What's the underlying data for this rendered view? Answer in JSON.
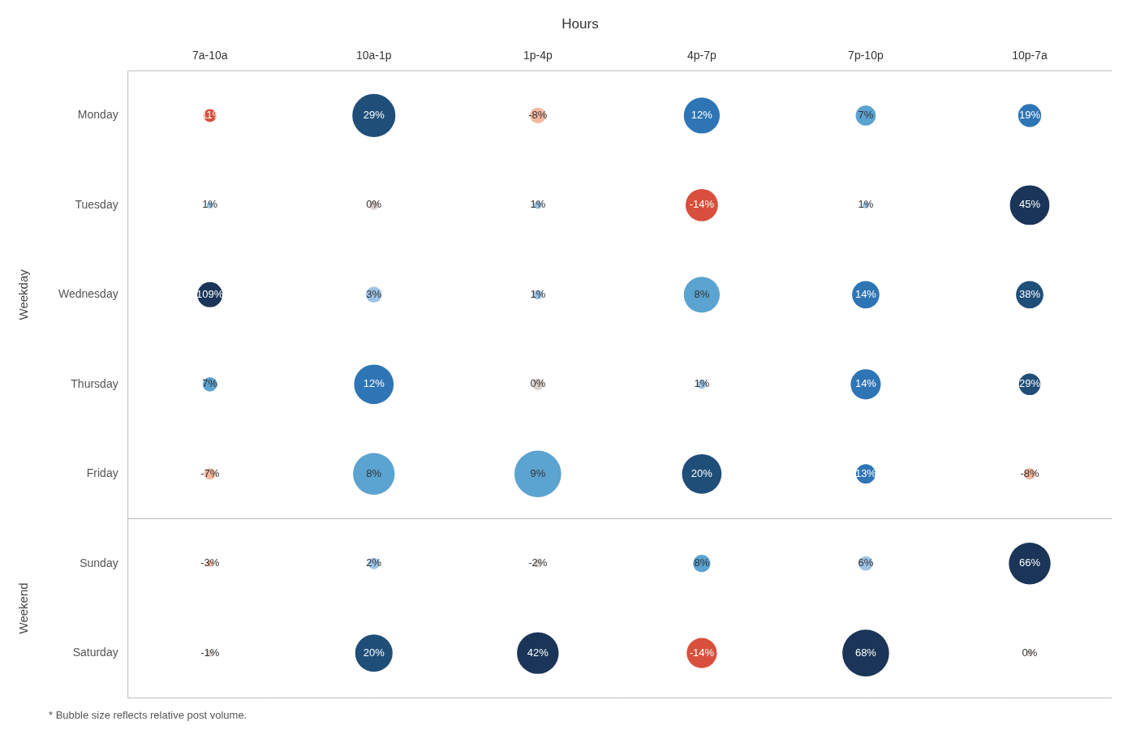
{
  "chart_data": {
    "type": "bubble",
    "title": "Hours",
    "footnote": "* Bubble size reflects relative post volume.",
    "categories": [
      "7a-10a",
      "10a-1p",
      "1p-4p",
      "4p-7p",
      "7p-10p",
      "10p-7a"
    ],
    "rows": [
      "Monday",
      "Tuesday",
      "Wednesday",
      "Thursday",
      "Friday",
      "Sunday",
      "Saturday"
    ],
    "row_groups": [
      {
        "label": "Weekday",
        "rows": [
          "Monday",
          "Tuesday",
          "Wednesday",
          "Thursday",
          "Friday"
        ]
      },
      {
        "label": "Weekend",
        "rows": [
          "Sunday",
          "Saturday"
        ]
      }
    ],
    "values": [
      [
        -11,
        29,
        -8,
        12,
        7,
        19
      ],
      [
        1,
        0,
        1,
        -14,
        1,
        45
      ],
      [
        109,
        3,
        1,
        8,
        14,
        38
      ],
      [
        7,
        12,
        0,
        1,
        14,
        29
      ],
      [
        -7,
        8,
        9,
        20,
        13,
        -8
      ],
      [
        -3,
        2,
        -2,
        8,
        6,
        66
      ],
      [
        -1,
        20,
        42,
        -14,
        68,
        0
      ]
    ],
    "value_labels": [
      [
        "-11%",
        "29%",
        "-8%",
        "12%",
        "7%",
        "19%"
      ],
      [
        "1%",
        "0%",
        "1%",
        "-14%",
        "1%",
        "45%"
      ],
      [
        "109%",
        "3%",
        "1%",
        "8%",
        "14%",
        "38%"
      ],
      [
        "7%",
        "12%",
        "0%",
        "1%",
        "14%",
        "29%"
      ],
      [
        "-7%",
        "8%",
        "9%",
        "20%",
        "13%",
        "-8%"
      ],
      [
        "-3%",
        "2%",
        "-2%",
        "8%",
        "6%",
        "66%"
      ],
      [
        "-1%",
        "20%",
        "42%",
        "-14%",
        "68%",
        "0%"
      ]
    ],
    "bubble_sizes": [
      [
        18,
        60,
        22,
        50,
        28,
        32
      ],
      [
        9,
        13,
        11,
        45,
        9,
        55
      ],
      [
        35,
        22,
        13,
        50,
        38,
        38
      ],
      [
        20,
        55,
        16,
        13,
        42,
        30
      ],
      [
        16,
        58,
        65,
        55,
        27,
        16
      ],
      [
        9,
        16,
        11,
        24,
        20,
        58
      ],
      [
        9,
        52,
        58,
        42,
        65,
        9
      ]
    ],
    "colors": [
      [
        "#d94f3d",
        "#1f4e79",
        "#f4b8a0",
        "#2e75b6",
        "#5ba3d0",
        "#2e75b6"
      ],
      [
        "#9dc3e6",
        "#d9d0cc",
        "#9dc3e6",
        "#d94f3d",
        "#9dc3e6",
        "#1a3558"
      ],
      [
        "#1a3558",
        "#9dc3e6",
        "#9dc3e6",
        "#5ba3d0",
        "#2e75b6",
        "#1f4e79"
      ],
      [
        "#5ba3d0",
        "#2e75b6",
        "#d9d0cc",
        "#9dc3e6",
        "#2e75b6",
        "#1f4e79"
      ],
      [
        "#f4b8a0",
        "#5ba3d0",
        "#5ba3d0",
        "#1f4e79",
        "#2e75b6",
        "#f4b8a0"
      ],
      [
        "#f4b8a0",
        "#9dc3e6",
        "#d9d0cc",
        "#5ba3d0",
        "#9dc3e6",
        "#1a3558"
      ],
      [
        "#d9d0cc",
        "#1f4e79",
        "#1a3558",
        "#d94f3d",
        "#1a3558",
        "#d9d0cc"
      ]
    ],
    "data_labels": true,
    "grid": false,
    "legend": false
  }
}
